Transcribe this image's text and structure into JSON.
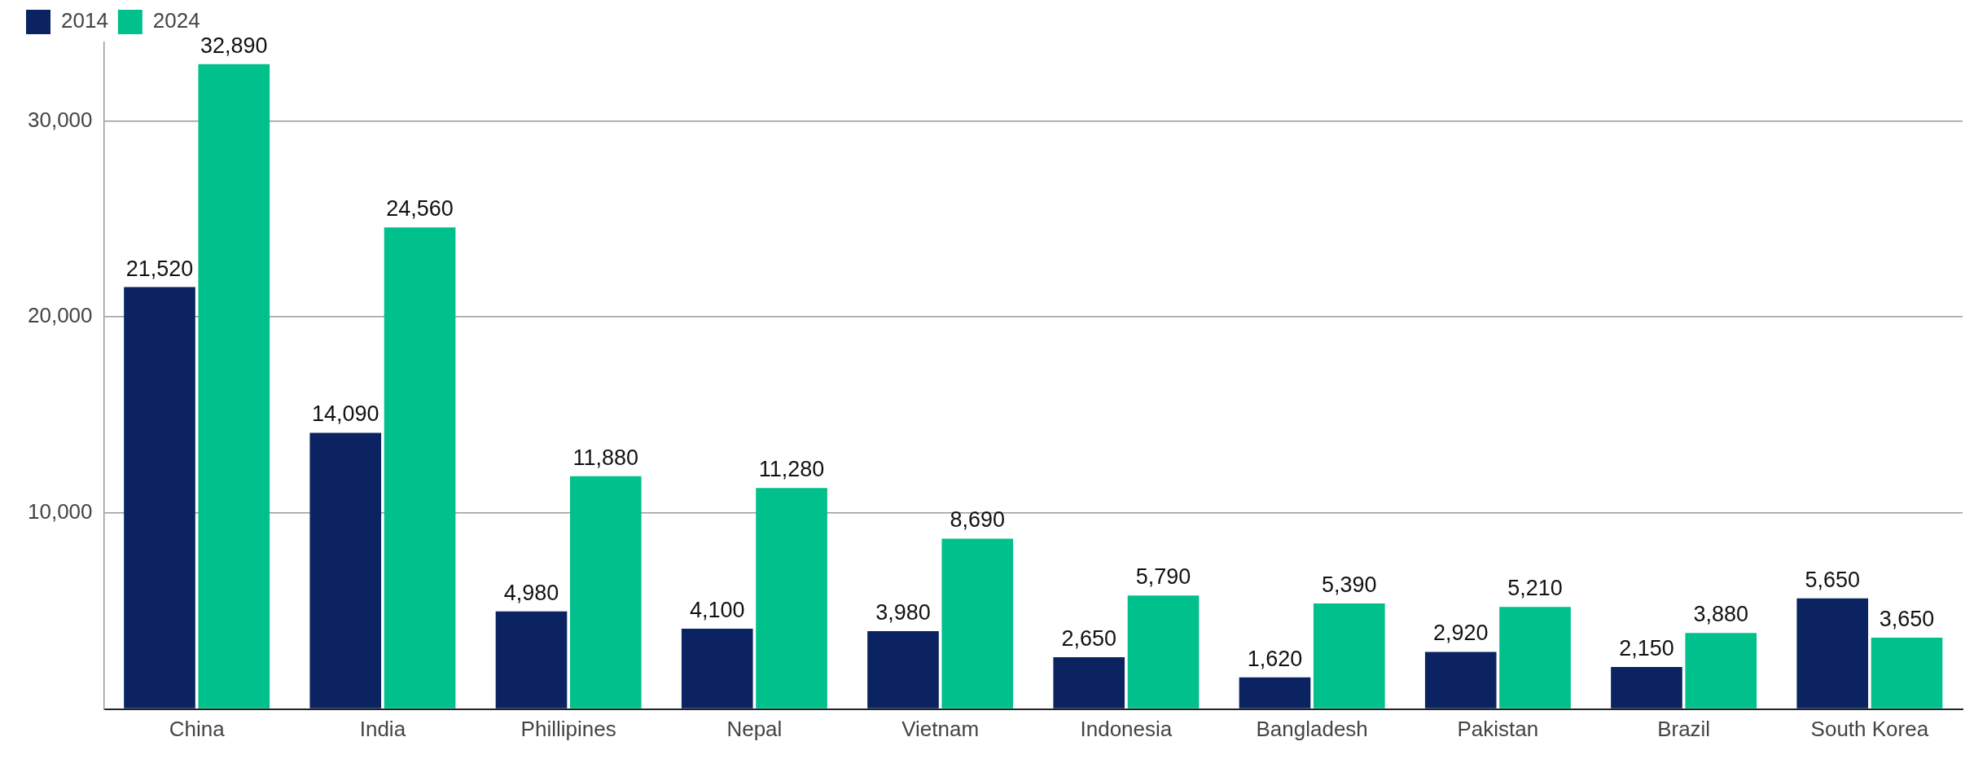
{
  "chart_data": {
    "type": "bar",
    "categories": [
      "China",
      "India",
      "Phillipines",
      "Nepal",
      "Vietnam",
      "Indonesia",
      "Bangladesh",
      "Pakistan",
      "Brazil",
      "South Korea"
    ],
    "series": [
      {
        "name": "2014",
        "color": "#0b2461",
        "values": [
          21520,
          14090,
          4980,
          4100,
          3980,
          2650,
          1620,
          2920,
          2150,
          5650
        ],
        "value_labels": [
          "21,520",
          "14,090",
          "4,980",
          "4,100",
          "3,980",
          "2,650",
          "1,620",
          "2,920",
          "2,150",
          "5,650"
        ]
      },
      {
        "name": "2024",
        "color": "#00c08b",
        "values": [
          32890,
          24560,
          11880,
          11280,
          8690,
          5790,
          5390,
          5210,
          3880,
          3650
        ],
        "value_labels": [
          "32,890",
          "24,560",
          "11,880",
          "11,280",
          "8,690",
          "5,790",
          "5,390",
          "5,210",
          "3,880",
          "3,650"
        ]
      }
    ],
    "ylim": [
      0,
      34000
    ],
    "yticks": [
      {
        "value": 0,
        "label": null
      },
      {
        "value": 10000,
        "label": "10,000"
      },
      {
        "value": 20000,
        "label": "20,000"
      },
      {
        "value": 30000,
        "label": "30,000"
      }
    ],
    "grid": "y",
    "legend": "top left"
  }
}
